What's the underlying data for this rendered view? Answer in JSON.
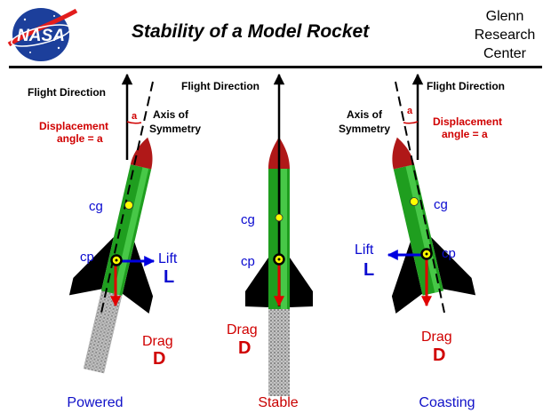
{
  "header": {
    "logo_text": "NASA",
    "title": "Stability of a Model Rocket",
    "org_lines": [
      "Glenn",
      "Research",
      "Center"
    ]
  },
  "labels": {
    "flight_direction": "Flight Direction",
    "axis_line1": "Axis of",
    "axis_line2": "Symmetry",
    "displacement_line1": "Displacement",
    "displacement_line2": "angle = a",
    "angle_symbol": "a",
    "cg": "cg",
    "cp": "cp",
    "lift": "Lift",
    "lift_symbol": "L",
    "drag": "Drag",
    "drag_symbol": "D"
  },
  "panels": [
    {
      "caption": "Powered",
      "caption_color": "#1010c8"
    },
    {
      "caption": "Stable",
      "caption_color": "#c80000"
    },
    {
      "caption": "Coasting",
      "caption_color": "#1010c8"
    }
  ],
  "colors": {
    "body_green": "#1f9e1f",
    "nose_red": "#b01818",
    "fin_black": "#000000",
    "cg_yellow": "#ffff00",
    "force_red": "#e00000",
    "lift_blue": "#0000e0",
    "label_blue": "#0a0ad0",
    "label_red": "#d00000"
  }
}
